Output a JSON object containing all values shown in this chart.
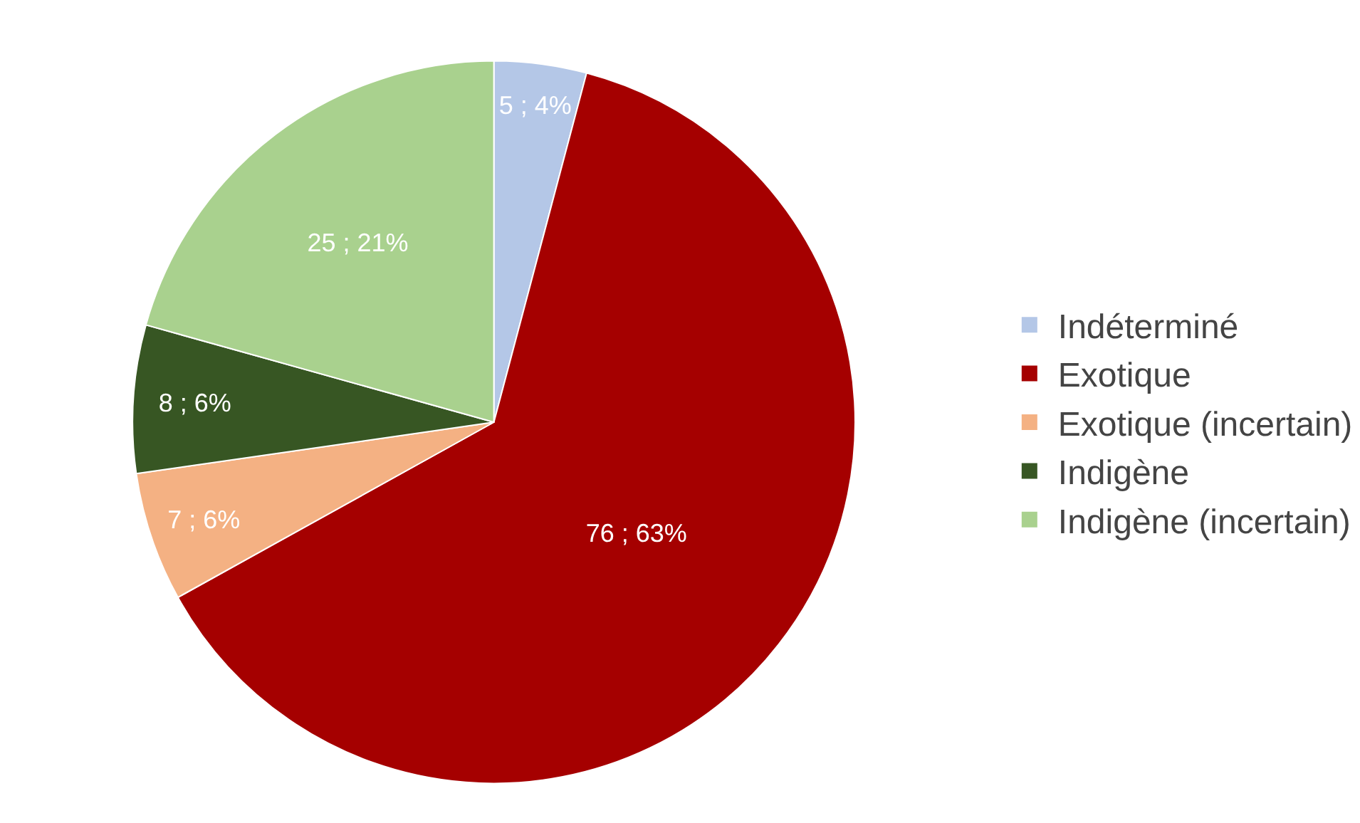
{
  "chart_data": {
    "type": "pie",
    "categories": [
      "Indéterminé",
      "Exotique",
      "Exotique (incertain)",
      "Indigène",
      "Indigène (incertain)"
    ],
    "values": [
      5,
      76,
      7,
      8,
      25
    ],
    "colors": [
      "#b4c7e7",
      "#a50000",
      "#f4b183",
      "#375623",
      "#a9d18e"
    ],
    "value_labels": [
      "5 ; 4%",
      "76 ; 63%",
      "7 ; 6%",
      "8 ; 6%",
      "25 ; 21%"
    ],
    "legend": "right"
  }
}
